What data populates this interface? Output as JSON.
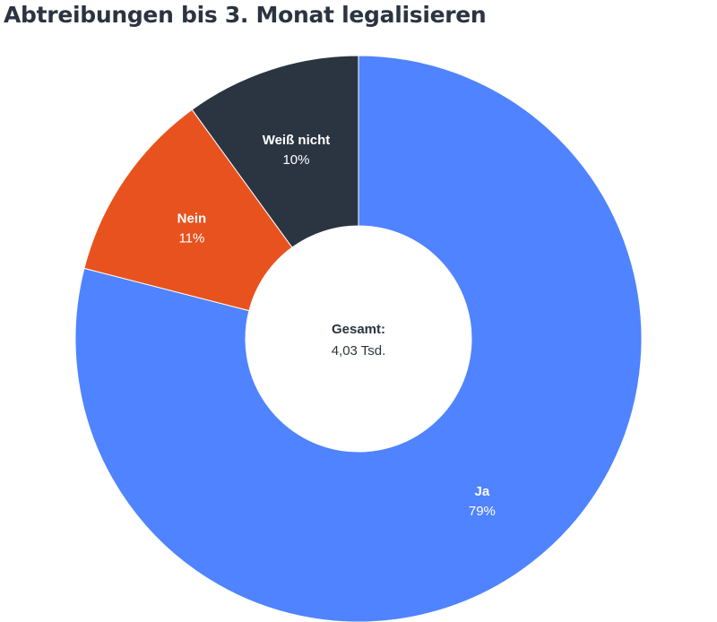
{
  "title": "Abtreibungen bis 3. Monat legalisieren",
  "center": {
    "label": "Gesamt:",
    "value": "4,03 Tsd."
  },
  "chart_data": {
    "type": "pie",
    "variant": "donut",
    "title": "Abtreibungen bis 3. Monat legalisieren",
    "total_label": "Gesamt:",
    "total_value": "4,03 Tsd.",
    "slices": [
      {
        "label": "Ja",
        "value": 79,
        "value_label": "79%",
        "color": "#4f83ff",
        "text_color": "#ffffff"
      },
      {
        "label": "Nein",
        "value": 11,
        "value_label": "11%",
        "color": "#e8521e",
        "text_color": "#ffffff"
      },
      {
        "label": "Weiß nicht",
        "value": 10,
        "value_label": "10%",
        "color": "#2b3541",
        "text_color": "#ffffff"
      }
    ]
  }
}
